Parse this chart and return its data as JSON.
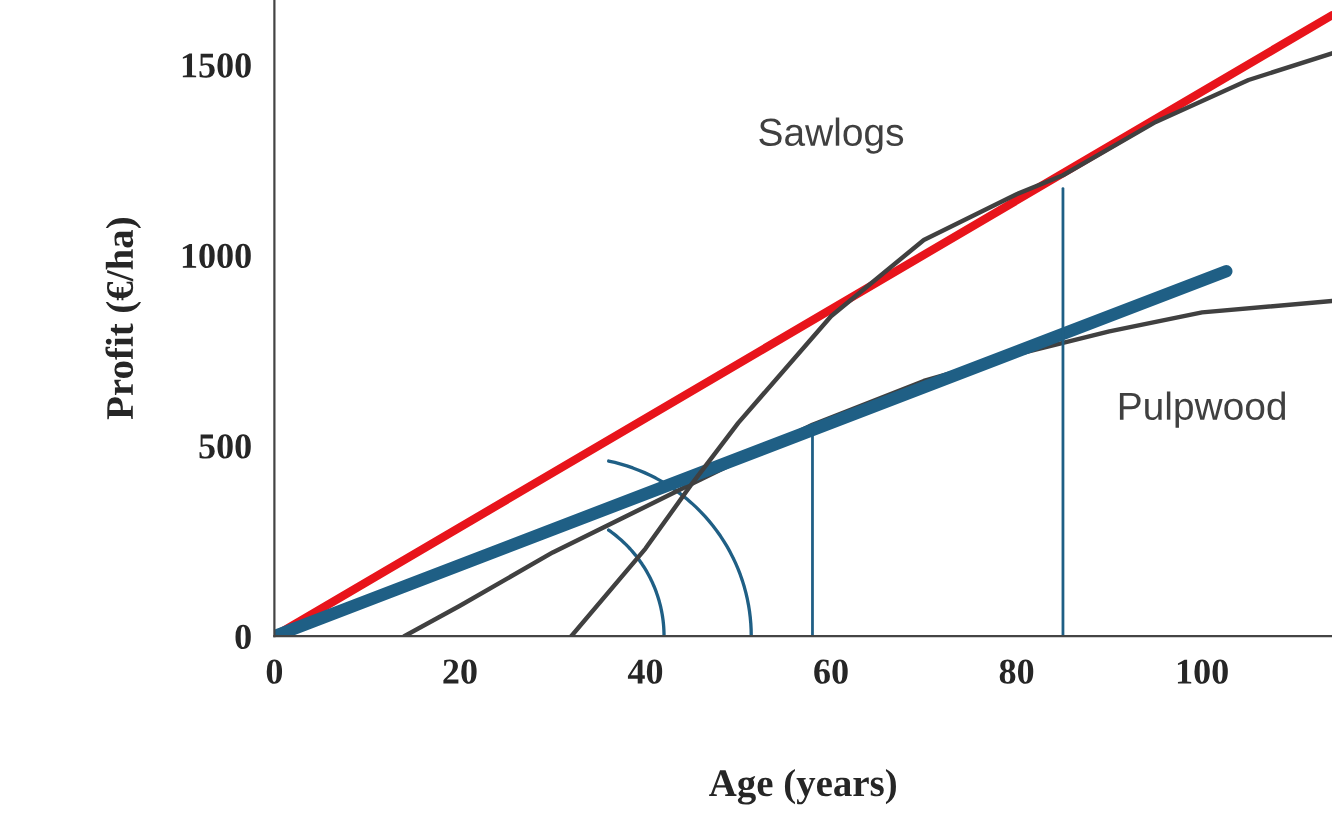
{
  "chart_data": {
    "type": "line",
    "xlabel": "Age (years)",
    "ylabel": "Profit (€/ha)",
    "xlim": [
      0,
      114
    ],
    "ylim": [
      0,
      1670
    ],
    "xticks": [
      0,
      20,
      40,
      60,
      80,
      100
    ],
    "yticks": [
      0,
      500,
      1000,
      1500
    ],
    "grid": false,
    "legend": false,
    "marker": "none",
    "line_style": "solid",
    "series": [
      {
        "name": "Sawlogs",
        "color": "#404040",
        "x": [
          32,
          40,
          45,
          50,
          60,
          70,
          80,
          85,
          95,
          105,
          114
        ],
        "values": [
          0,
          230,
          400,
          560,
          840,
          1040,
          1160,
          1210,
          1350,
          1460,
          1530
        ]
      },
      {
        "name": "Pulpwood",
        "color": "#404040",
        "x": [
          14,
          20,
          30,
          40,
          45,
          58,
          70,
          80,
          90,
          100,
          114
        ],
        "values": [
          0,
          80,
          220,
          340,
          400,
          555,
          670,
          740,
          800,
          850,
          880
        ]
      },
      {
        "color": "#e8141b",
        "x": [
          0,
          114
        ],
        "values": [
          0,
          1630
        ]
      },
      {
        "color": "#1f5f85",
        "x": [
          0,
          102.6
        ],
        "values": [
          0,
          958
        ]
      },
      {
        "color": "#1f5f85",
        "x": [
          58,
          58
        ],
        "values": [
          0,
          555
        ]
      },
      {
        "color": "#1f5f85",
        "x": [
          85,
          85
        ],
        "values": [
          0,
          1175
        ]
      }
    ]
  }
}
